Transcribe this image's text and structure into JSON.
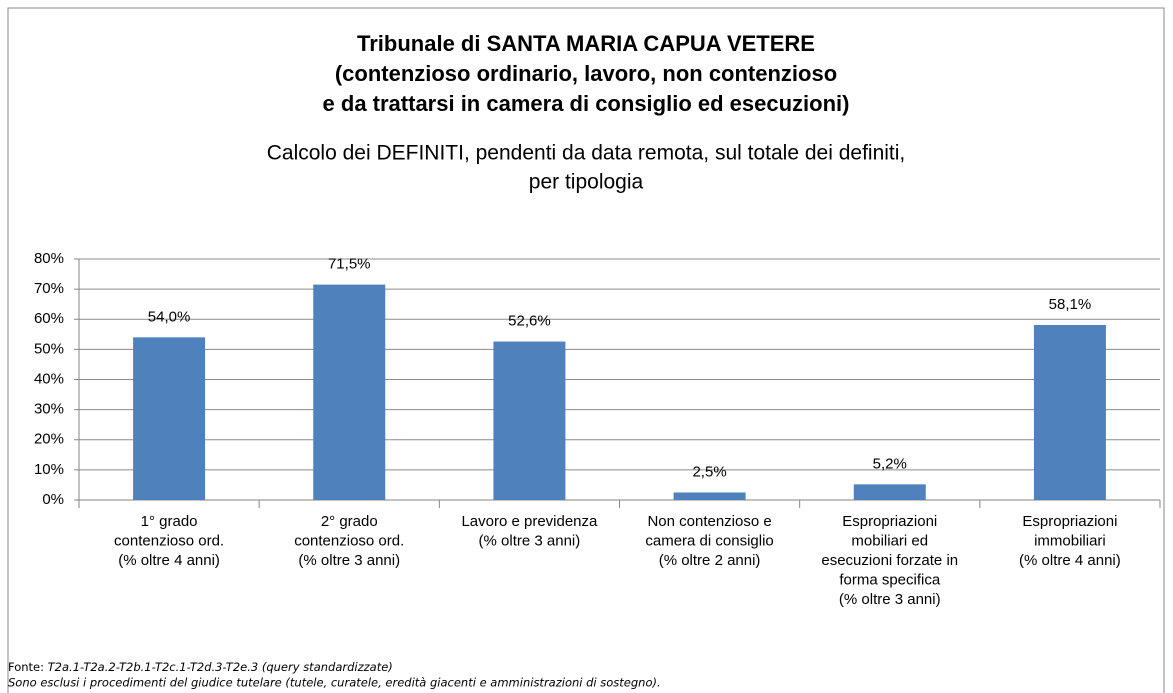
{
  "chart_data": {
    "type": "bar",
    "title": [
      "Tribunale di SANTA MARIA CAPUA VETERE",
      "(contenzioso ordinario, lavoro, non contenzioso",
      "e da trattarsi in camera di consiglio ed esecuzioni)"
    ],
    "subtitle": [
      "Calcolo dei DEFINITI,  pendenti da data remota, sul totale dei definiti,",
      "per tipologia"
    ],
    "categories": [
      [
        "1° grado",
        "contenzioso ord.",
        "(% oltre 4 anni)"
      ],
      [
        "2° grado",
        "contenzioso ord.",
        "(% oltre 3 anni)"
      ],
      [
        "Lavoro e previdenza",
        "(% oltre 3 anni)"
      ],
      [
        "Non contenzioso e",
        "camera di consiglio",
        "(% oltre 2 anni)"
      ],
      [
        "Espropriazioni",
        "mobiliari ed",
        "esecuzioni forzate in",
        "forma specifica",
        "(% oltre 3 anni)"
      ],
      [
        "Espropriazioni",
        "immobiliari",
        "(% oltre 4 anni)"
      ]
    ],
    "values": [
      54.0,
      71.5,
      52.6,
      2.5,
      5.2,
      58.1
    ],
    "value_labels": [
      "54,0%",
      "71,5%",
      "52,6%",
      "2,5%",
      "5,2%",
      "58,1%"
    ],
    "color": "#4f81bd",
    "ylim": [
      0,
      80
    ],
    "yticks": [
      {
        "value": 0,
        "label": "0%"
      },
      {
        "value": 10,
        "label": "10%"
      },
      {
        "value": 20,
        "label": "20%"
      },
      {
        "value": 30,
        "label": "30%"
      },
      {
        "value": 40,
        "label": "40%"
      },
      {
        "value": 50,
        "label": "50%"
      },
      {
        "value": 60,
        "label": "60%"
      },
      {
        "value": 70,
        "label": "70%"
      },
      {
        "value": 80,
        "label": "80%"
      }
    ],
    "grid": true,
    "source_label": "Fonte:",
    "source": "T2a.1-T2a.2-T2b.1-T2c.1-T2d.3-T2e.3 (query standardizzate)",
    "note": "Sono esclusi i procedimenti del giudice tutelare (tutele, curatele, eredità giacenti e amministrazioni di sostegno)."
  }
}
